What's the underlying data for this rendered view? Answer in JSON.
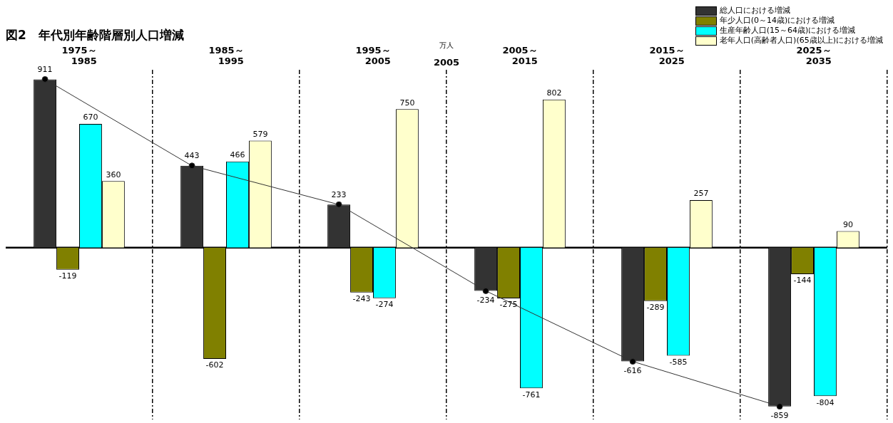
{
  "chart_data": {
    "type": "bar",
    "title": "図2　年代別年齢階層別人口増減",
    "ylabel": "万人",
    "categories": [
      "1975～1985",
      "1985～1995",
      "1995～2005",
      "2005～2015",
      "2015～2025",
      "2025～2035"
    ],
    "series": [
      {
        "name": "総人口における増減",
        "color": "#333333",
        "values": [
          911,
          443,
          233,
          -234,
          -616,
          -859
        ],
        "value_labels": [
          "911",
          "443",
          "233",
          "-234",
          "-616",
          "-859"
        ]
      },
      {
        "name": "年少人口(0～14歳)における増減",
        "color": "#808000",
        "values": [
          -119,
          -602,
          -243,
          -275,
          -289,
          -144
        ],
        "value_labels": [
          "-119",
          "-602",
          "-243",
          "-275",
          "-289",
          "-144"
        ]
      },
      {
        "name": "生産年齢人口(15～64歳)における増減",
        "color": "#00ffff",
        "values": [
          670,
          466,
          -274,
          -761,
          -585,
          -804
        ],
        "value_labels": [
          "670",
          "466",
          "-274",
          "-761",
          "-585",
          "-804"
        ]
      },
      {
        "name": "老年人口(高齢者人口)(65歳以上)における増減",
        "color": "#ffffcc",
        "values": [
          360,
          579,
          750,
          802,
          257,
          90
        ],
        "value_labels": [
          "360",
          "579",
          "750",
          "802",
          "257",
          "90"
        ]
      },
      {
        "type": "line",
        "color": "#333333",
        "values": [
          911,
          443,
          233,
          -234,
          -616,
          -859
        ]
      }
    ],
    "annotations": [
      "2005"
    ],
    "grid": "x",
    "legend": "top right",
    "marker": "circle"
  }
}
